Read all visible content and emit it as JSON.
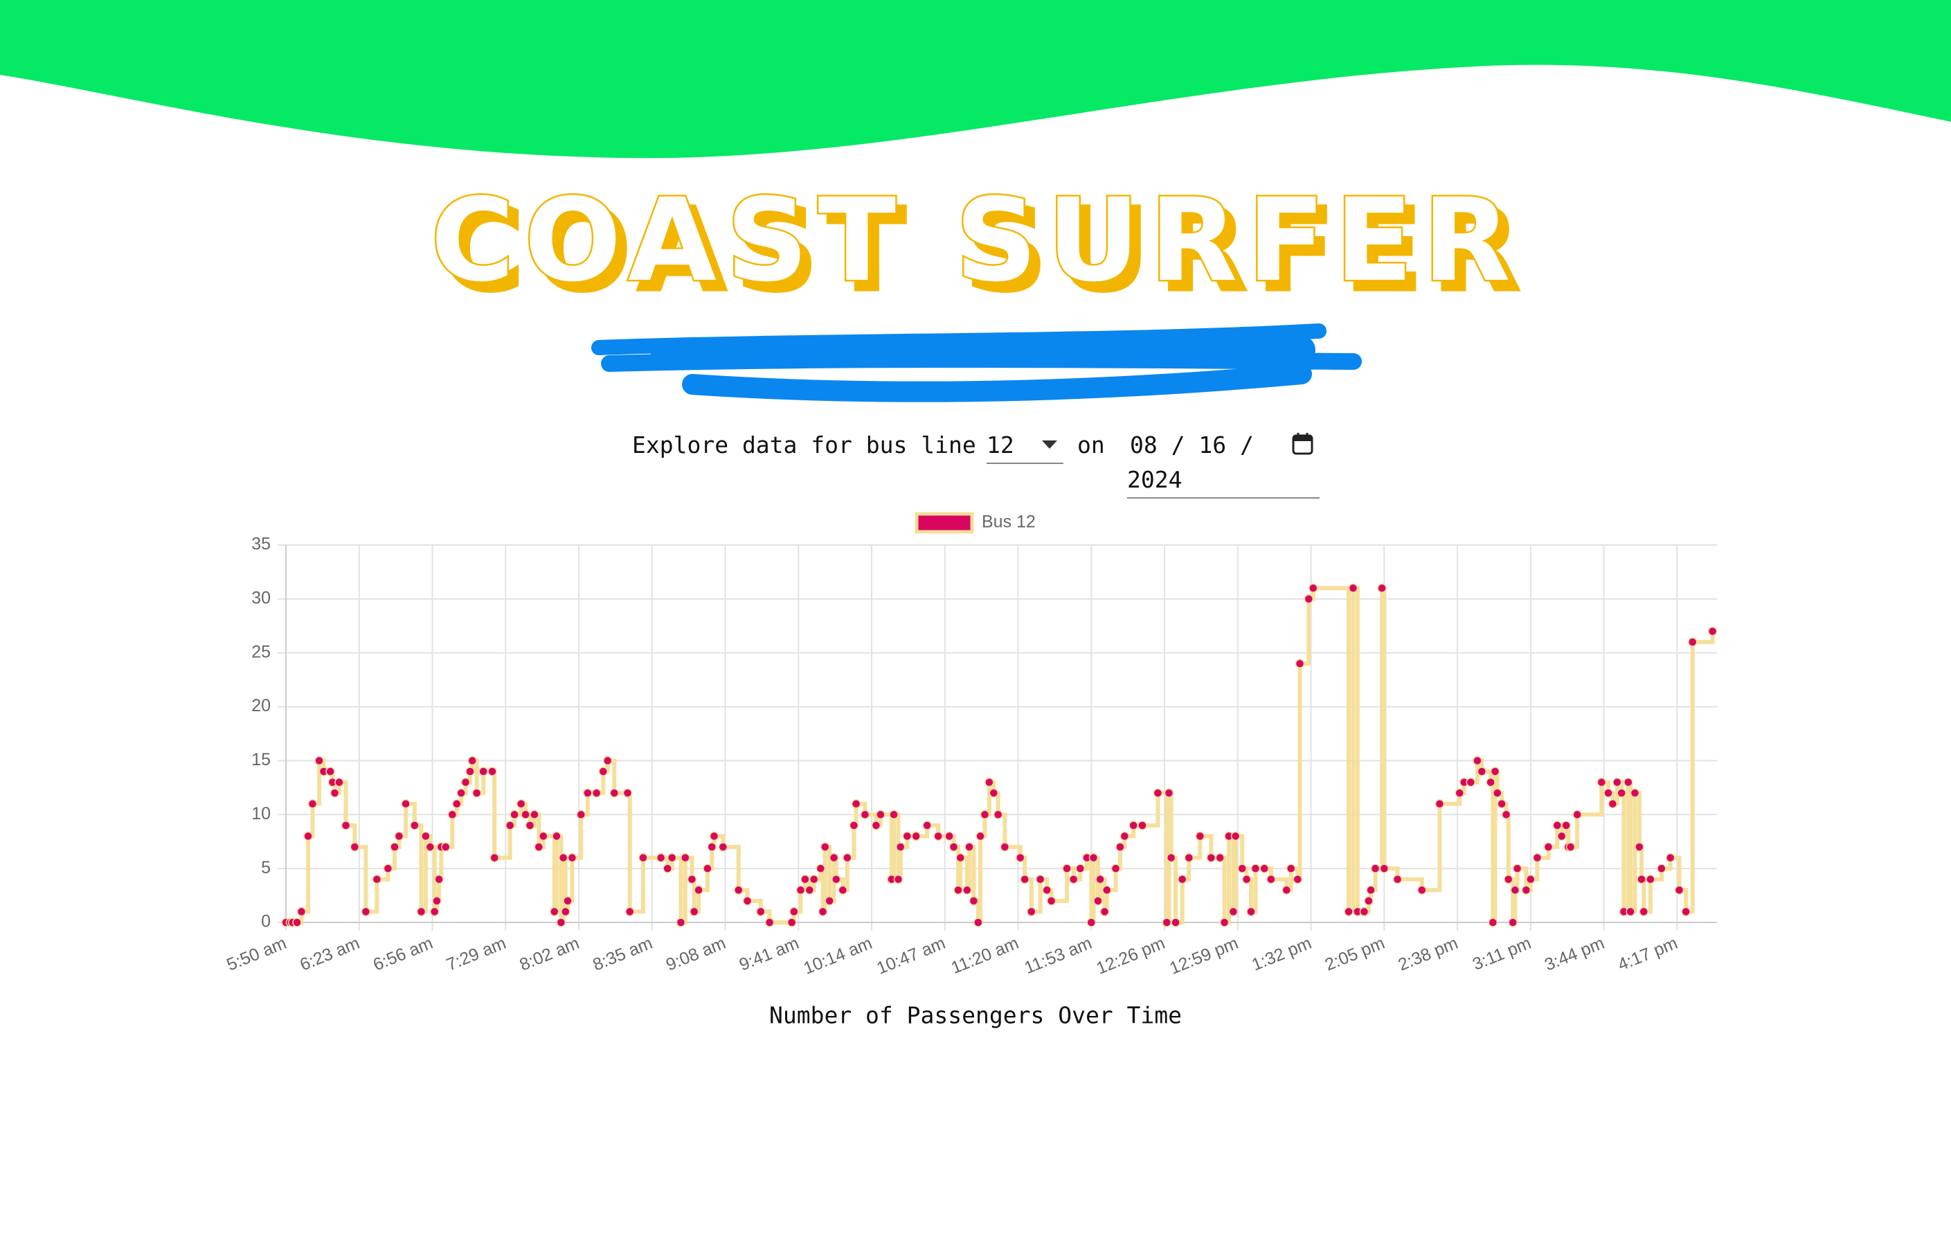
{
  "header": {
    "title": "COAST SURFER"
  },
  "controls": {
    "prompt": "Explore data for bus line",
    "bus_line": "12",
    "connector": "on",
    "date": {
      "month": "08",
      "day": "16",
      "year": "2024",
      "separator": "/"
    }
  },
  "chart_data": {
    "type": "line",
    "stepped": true,
    "grid": true,
    "legend": "top",
    "xlabel": "Number of Passengers Over Time",
    "x": [
      "05:50",
      "05:52",
      "05:53",
      "05:55",
      "05:57",
      "06:00",
      "06:02",
      "06:05",
      "06:07",
      "06:10",
      "06:11",
      "06:12",
      "06:14",
      "06:17",
      "06:21",
      "06:26",
      "06:31",
      "06:36",
      "06:39",
      "06:41",
      "06:44",
      "06:48",
      "06:51",
      "06:53",
      "06:55",
      "06:57",
      "06:58",
      "06:59",
      "07:00",
      "07:02",
      "07:05",
      "07:07",
      "07:09",
      "07:11",
      "07:13",
      "07:14",
      "07:16",
      "07:19",
      "07:23",
      "07:24",
      "07:31",
      "07:33",
      "07:36",
      "07:38",
      "07:40",
      "07:42",
      "07:44",
      "07:46",
      "07:51",
      "07:52",
      "07:54",
      "07:55",
      "07:56",
      "07:57",
      "07:59",
      "08:03",
      "08:06",
      "08:10",
      "08:13",
      "08:15",
      "08:18",
      "08:24",
      "08:25",
      "08:31",
      "08:39",
      "08:42",
      "08:44",
      "08:48",
      "08:50",
      "08:53",
      "08:54",
      "08:56",
      "09:00",
      "09:02",
      "09:03",
      "09:07",
      "09:14",
      "09:18",
      "09:24",
      "09:28",
      "09:38",
      "09:39",
      "09:42",
      "09:44",
      "09:46",
      "09:48",
      "09:51",
      "09:52",
      "09:53",
      "09:55",
      "09:57",
      "09:58",
      "10:01",
      "10:03",
      "10:06",
      "10:07",
      "10:11",
      "10:16",
      "10:18",
      "10:23",
      "10:24",
      "10:26",
      "10:27",
      "10:30",
      "10:34",
      "10:39",
      "10:44",
      "10:49",
      "10:51",
      "10:53",
      "10:54",
      "10:57",
      "10:58",
      "11:00",
      "11:02",
      "11:03",
      "11:05",
      "11:07",
      "11:09",
      "11:11",
      "11:14",
      "11:21",
      "11:23",
      "11:26",
      "11:30",
      "11:33",
      "11:35",
      "11:42",
      "11:45",
      "11:48",
      "11:51",
      "11:53",
      "11:54",
      "11:56",
      "11:57",
      "11:59",
      "12:00",
      "12:04",
      "12:06",
      "12:08",
      "12:12",
      "12:16",
      "12:23",
      "12:27",
      "12:28",
      "12:29",
      "12:31",
      "12:34",
      "12:37",
      "12:42",
      "12:47",
      "12:51",
      "12:53",
      "12:55",
      "12:57",
      "12:58",
      "13:01",
      "13:03",
      "13:05",
      "13:07",
      "13:11",
      "13:14",
      "13:21",
      "13:23",
      "13:26",
      "13:27",
      "13:31",
      "13:33",
      "13:49",
      "13:51",
      "13:53",
      "13:56",
      "13:58",
      "13:59",
      "14:01",
      "14:04",
      "14:05",
      "14:11",
      "14:22",
      "14:30",
      "14:39",
      "14:41",
      "14:44",
      "14:47",
      "14:49",
      "14:53",
      "14:54",
      "14:55",
      "14:56",
      "14:58",
      "15:00",
      "15:01",
      "15:03",
      "15:04",
      "15:05",
      "15:09",
      "15:11",
      "15:14",
      "15:19",
      "15:23",
      "15:25",
      "15:27",
      "15:28",
      "15:29",
      "15:32",
      "15:43",
      "15:46",
      "15:48",
      "15:50",
      "15:52",
      "15:53",
      "15:55",
      "15:56",
      "15:58",
      "16:00",
      "16:01",
      "16:02",
      "16:05",
      "16:10",
      "16:14",
      "16:18",
      "16:21",
      "16:24",
      "16:33"
    ],
    "series": [
      {
        "name": "Bus 12",
        "color": "#d9065f",
        "line_color": "#f5df9a",
        "values": [
          0,
          0,
          0,
          0,
          1,
          8,
          11,
          15,
          14,
          14,
          13,
          12,
          13,
          9,
          7,
          1,
          4,
          5,
          7,
          8,
          11,
          9,
          1,
          8,
          7,
          1,
          2,
          4,
          7,
          7,
          10,
          11,
          12,
          13,
          14,
          15,
          12,
          14,
          14,
          6,
          9,
          10,
          11,
          10,
          9,
          10,
          7,
          8,
          1,
          8,
          0,
          6,
          1,
          2,
          6,
          10,
          12,
          12,
          14,
          15,
          12,
          12,
          1,
          6,
          6,
          5,
          6,
          0,
          6,
          4,
          1,
          3,
          5,
          7,
          8,
          7,
          3,
          2,
          1,
          0,
          0,
          1,
          3,
          4,
          3,
          4,
          5,
          1,
          7,
          2,
          6,
          4,
          3,
          6,
          9,
          11,
          10,
          9,
          10,
          4,
          10,
          4,
          7,
          8,
          8,
          9,
          8,
          8,
          7,
          3,
          6,
          3,
          7,
          2,
          0,
          8,
          10,
          13,
          12,
          10,
          7,
          6,
          4,
          1,
          4,
          3,
          2,
          5,
          4,
          5,
          6,
          0,
          6,
          2,
          4,
          1,
          3,
          5,
          7,
          8,
          9,
          9,
          12,
          0,
          12,
          6,
          0,
          4,
          6,
          8,
          6,
          6,
          0,
          8,
          1,
          8,
          5,
          4,
          1,
          5,
          5,
          4,
          3,
          5,
          4,
          24,
          30,
          31,
          1,
          31,
          1,
          1,
          2,
          3,
          5,
          31,
          5,
          4,
          3,
          11,
          12,
          13,
          13,
          15,
          14,
          13,
          0,
          14,
          12,
          11,
          10,
          4,
          0,
          3,
          5,
          3,
          4,
          6,
          7,
          9,
          8,
          9,
          7,
          7,
          10,
          13,
          12,
          11,
          13,
          12,
          1,
          13,
          1,
          12,
          7,
          4,
          1,
          4,
          5,
          6,
          3,
          1,
          26,
          27
        ]
      }
    ],
    "xlim": [
      "05:50",
      "16:35"
    ],
    "xticks": [
      {
        "value": "05:50",
        "label": "5:50 am"
      },
      {
        "value": "06:23",
        "label": "6:23 am"
      },
      {
        "value": "06:56",
        "label": "6:56 am"
      },
      {
        "value": "07:29",
        "label": "7:29 am"
      },
      {
        "value": "08:02",
        "label": "8:02 am"
      },
      {
        "value": "08:35",
        "label": "8:35 am"
      },
      {
        "value": "09:08",
        "label": "9:08 am"
      },
      {
        "value": "09:41",
        "label": "9:41 am"
      },
      {
        "value": "10:14",
        "label": "10:14 am"
      },
      {
        "value": "10:47",
        "label": "10:47 am"
      },
      {
        "value": "11:20",
        "label": "11:20 am"
      },
      {
        "value": "11:53",
        "label": "11:53 am"
      },
      {
        "value": "12:26",
        "label": "12:26 pm"
      },
      {
        "value": "12:59",
        "label": "12:59 pm"
      },
      {
        "value": "13:32",
        "label": "1:32 pm"
      },
      {
        "value": "14:05",
        "label": "2:05 pm"
      },
      {
        "value": "14:38",
        "label": "2:38 pm"
      },
      {
        "value": "15:11",
        "label": "3:11 pm"
      },
      {
        "value": "15:44",
        "label": "3:44 pm"
      },
      {
        "value": "16:17",
        "label": "4:17 pm"
      }
    ],
    "ylim": [
      0,
      35
    ],
    "yticks": [
      0,
      5,
      10,
      15,
      20,
      25,
      30,
      35
    ]
  }
}
